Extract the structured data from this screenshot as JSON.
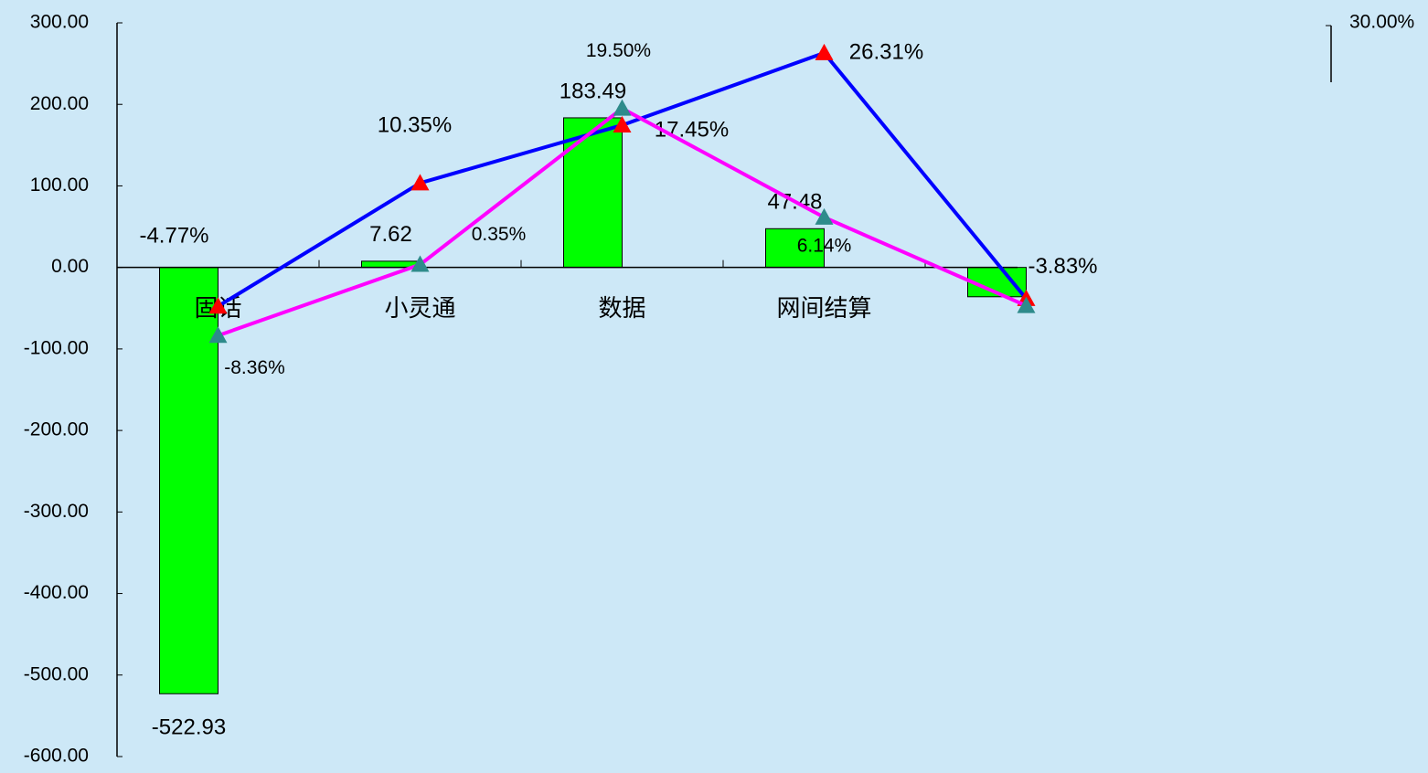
{
  "chart_data": {
    "type": "combo",
    "categories": [
      "固话",
      "小灵通",
      "数据",
      "网间结算",
      null
    ],
    "ylim": [
      -600,
      300
    ],
    "yticks": [
      {
        "value": 300,
        "label": "300.00"
      },
      {
        "value": 200,
        "label": "200.00"
      },
      {
        "value": 100,
        "label": "100.00"
      },
      {
        "value": 0,
        "label": "0.00"
      },
      {
        "value": -100,
        "label": "-100.00"
      },
      {
        "value": -200,
        "label": "-200.00"
      },
      {
        "value": -300,
        "label": "-300.00"
      },
      {
        "value": -400,
        "label": "-400.00"
      },
      {
        "value": -500,
        "label": "-500.00"
      },
      {
        "value": -600,
        "label": "-600.00"
      }
    ],
    "y2lim": [
      -60,
      30
    ],
    "y2ticks": [
      {
        "value": 30,
        "label": "30.00%"
      }
    ],
    "series": [
      {
        "type": "bar",
        "color": "#00ff00",
        "values": [
          -522.93,
          7.62,
          183.49,
          47.48,
          -36
        ],
        "value_labels": [
          "-522.93",
          "7.62",
          "183.49",
          "47.48",
          null
        ]
      },
      {
        "type": "line",
        "axis": "y2",
        "color": "#0000ff",
        "marker_color": "#ff0000",
        "values": [
          -4.77,
          10.35,
          17.45,
          26.31,
          -3.83
        ],
        "value_labels": [
          "-4.77%",
          "10.35%",
          "17.45%",
          "26.31%",
          "-3.83%"
        ]
      },
      {
        "type": "line",
        "axis": "y2",
        "color": "#ff00ff",
        "marker_color": "#2e8b8b",
        "values": [
          -8.36,
          0.35,
          19.5,
          6.14,
          -4.7
        ],
        "value_labels": [
          "-8.36%",
          "0.35%",
          "19.50%",
          "6.14%",
          null
        ]
      }
    ]
  }
}
